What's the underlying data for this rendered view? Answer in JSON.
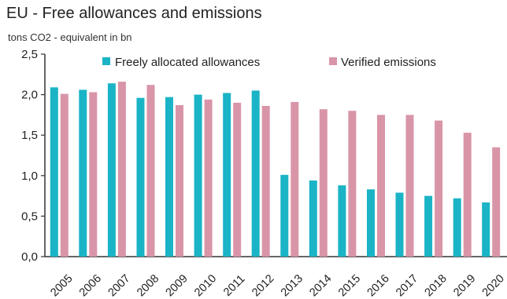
{
  "chart_data": {
    "type": "bar",
    "title": "EU - Free allowances and emissions",
    "subtitle": "tons CO2 - equivalent  in bn",
    "categories": [
      "2005",
      "2006",
      "2007",
      "2008",
      "2009",
      "2010",
      "2011",
      "2012",
      "2013",
      "2014",
      "2015",
      "2016",
      "2017",
      "2018",
      "2019",
      "2020"
    ],
    "series": [
      {
        "name": "Freely allocated allowances",
        "color": "#1ab4c6",
        "values": [
          2.09,
          2.06,
          2.14,
          1.96,
          1.97,
          2.0,
          2.02,
          2.05,
          1.01,
          0.94,
          0.88,
          0.83,
          0.79,
          0.75,
          0.72,
          0.67
        ]
      },
      {
        "name": "Verified emissions",
        "color": "#d995a8",
        "values": [
          2.01,
          2.03,
          2.16,
          2.12,
          1.87,
          1.94,
          1.9,
          1.86,
          1.91,
          1.82,
          1.8,
          1.75,
          1.75,
          1.68,
          1.53,
          1.35
        ]
      }
    ],
    "yticks": [
      "0,0",
      "0,5",
      "1,0",
      "1,5",
      "2,0",
      "2,5"
    ],
    "ylim": [
      0,
      2.5
    ],
    "grid": false,
    "legend_position": "top"
  }
}
